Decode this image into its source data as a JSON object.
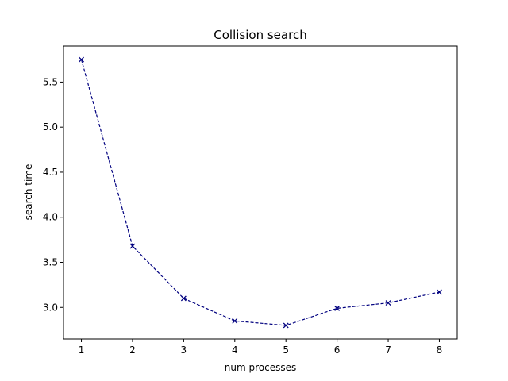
{
  "chart_data": {
    "type": "line",
    "title": "Collision search",
    "xlabel": "num processes",
    "ylabel": "search time",
    "x": [
      1,
      2,
      3,
      4,
      5,
      6,
      7,
      8
    ],
    "xticks": [
      "1",
      "2",
      "3",
      "4",
      "5",
      "6",
      "7",
      "8"
    ],
    "yticks": [
      "3.0",
      "3.5",
      "4.0",
      "4.5",
      "5.0",
      "5.5"
    ],
    "ytick_values": [
      3.0,
      3.5,
      4.0,
      4.5,
      5.0,
      5.5
    ],
    "xlim": [
      0.65,
      8.35
    ],
    "ylim": [
      2.65,
      5.9
    ],
    "grid": false,
    "series": [
      {
        "values": [
          5.75,
          3.68,
          3.1,
          2.85,
          2.8,
          2.99,
          3.05,
          3.17
        ],
        "color": "#00007f",
        "line_style": "dashed",
        "marker": "x"
      }
    ]
  }
}
